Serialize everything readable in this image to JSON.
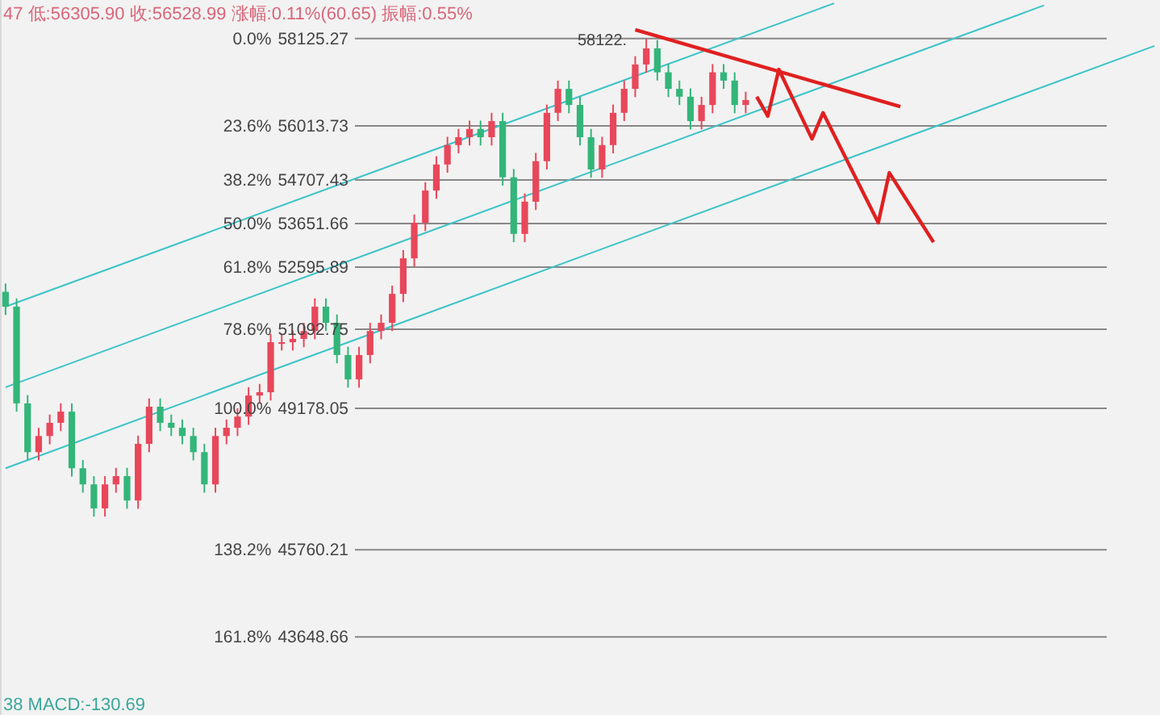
{
  "chart_data": {
    "type": "candlestick",
    "title": "47 低:56305.90 收:56528.99 涨幅:0.11%(60.65) 振幅:0.55%",
    "annotations": [
      "38 MACD:-130.69",
      "58122.",
      "0.0%",
      "23.6%",
      "38.2%",
      "50.0%",
      "61.8%",
      "78.6%",
      "100.0%",
      "138.2%",
      "161.8%"
    ],
    "ylim": [
      41760,
      59060
    ],
    "tick_labels": "y",
    "ref_lines": [
      {
        "axis": "y",
        "value": 58125.27,
        "color": "#888888"
      },
      {
        "axis": "y",
        "value": 56013.73,
        "color": "#888888"
      },
      {
        "axis": "y",
        "value": 54707.43,
        "color": "#888888"
      },
      {
        "axis": "y",
        "value": 53651.66,
        "color": "#888888"
      },
      {
        "axis": "y",
        "value": 52595.89,
        "color": "#888888"
      },
      {
        "axis": "y",
        "value": 51092.75,
        "color": "#888888"
      },
      {
        "axis": "y",
        "value": 49178.05,
        "color": "#888888"
      },
      {
        "axis": "y",
        "value": 45760.21,
        "color": "#888888"
      },
      {
        "axis": "y",
        "value": 43648.66,
        "color": "#888888"
      }
    ],
    "yticks": [
      58125.27,
      56013.73,
      54707.43,
      53651.66,
      52595.89,
      51092.75,
      49178.05,
      45760.21,
      43648.66
    ],
    "categories": [
      null,
      null,
      null,
      null,
      null,
      null,
      null,
      null,
      null,
      null,
      null,
      null,
      null,
      null,
      null,
      null,
      null,
      null,
      null,
      null,
      null,
      null,
      null,
      null,
      null,
      null,
      null,
      null,
      null,
      null,
      null,
      null,
      null,
      null,
      null,
      null,
      null,
      null,
      null,
      null,
      null,
      null,
      null,
      null,
      null,
      null,
      null,
      null,
      null,
      null,
      null,
      null,
      null,
      null,
      null,
      null,
      null,
      null,
      null,
      null,
      null,
      null,
      null,
      null,
      null,
      null,
      null,
      null,
      null,
      null,
      null,
      null,
      null,
      null,
      null,
      null,
      null,
      null,
      null,
      null,
      null,
      null,
      null,
      null,
      null,
      null,
      null,
      null,
      null,
      null,
      null,
      null,
      null,
      null,
      null,
      null,
      null,
      null,
      null,
      null,
      null,
      null,
      null,
      null,
      null
    ],
    "ohlc": [
      [
        52000,
        52200,
        51440,
        51640
      ],
      [
        51640,
        51840,
        49100,
        49300
      ],
      [
        49300,
        49500,
        47920,
        48120
      ],
      [
        48120,
        48710,
        47920,
        48510
      ],
      [
        48510,
        49030,
        48310,
        48830
      ],
      [
        48830,
        49300,
        48630,
        49100
      ],
      [
        49100,
        49300,
        47530,
        47730
      ],
      [
        47730,
        47930,
        47140,
        47340
      ],
      [
        47340,
        47540,
        46560,
        46760
      ],
      [
        46760,
        47540,
        46560,
        47340
      ],
      [
        47340,
        47740,
        47140,
        47540
      ],
      [
        47540,
        47740,
        46750,
        46950
      ],
      [
        46950,
        48520,
        46750,
        48320
      ],
      [
        48320,
        49420,
        48120,
        49220
      ],
      [
        49220,
        49420,
        48630,
        48830
      ],
      [
        48830,
        49030,
        48510,
        48710
      ],
      [
        48710,
        48910,
        48310,
        48510
      ],
      [
        48510,
        48710,
        47920,
        48120
      ],
      [
        48120,
        48320,
        47140,
        47340
      ],
      [
        47340,
        48710,
        47140,
        48510
      ],
      [
        48510,
        48910,
        48310,
        48710
      ],
      [
        48710,
        49180,
        48510,
        48980
      ],
      [
        48980,
        49690,
        48780,
        49490
      ],
      [
        49490,
        49770,
        49290,
        49570
      ],
      [
        49570,
        50980,
        49370,
        50780
      ],
      [
        50780,
        50980,
        50580,
        50780
      ],
      [
        50780,
        51060,
        50580,
        50860
      ],
      [
        50860,
        51250,
        50660,
        51050
      ],
      [
        51050,
        51840,
        50850,
        51640
      ],
      [
        51640,
        51840,
        51050,
        51250
      ],
      [
        51250,
        51450,
        50270,
        50470
      ],
      [
        50470,
        50670,
        49680,
        49880
      ],
      [
        49880,
        50670,
        49680,
        50470
      ],
      [
        50470,
        51250,
        50270,
        51050
      ],
      [
        51050,
        51450,
        50850,
        51250
      ],
      [
        51250,
        52150,
        51050,
        51950
      ],
      [
        51950,
        53010,
        51750,
        52810
      ],
      [
        52810,
        53870,
        52610,
        53670
      ],
      [
        53670,
        54650,
        53470,
        54450
      ],
      [
        54450,
        55280,
        54250,
        55080
      ],
      [
        55080,
        55750,
        54880,
        55550
      ],
      [
        55550,
        55940,
        55350,
        55740
      ],
      [
        55740,
        56140,
        55540,
        55940
      ],
      [
        55940,
        56140,
        55540,
        55740
      ],
      [
        55740,
        56330,
        55540,
        56130
      ],
      [
        56130,
        56330,
        54570,
        54770
      ],
      [
        54770,
        54970,
        53200,
        53400
      ],
      [
        53400,
        54380,
        53200,
        54180
      ],
      [
        54180,
        55360,
        53980,
        55160
      ],
      [
        55160,
        56530,
        54960,
        56330
      ],
      [
        56330,
        57110,
        56130,
        56910
      ],
      [
        56910,
        57110,
        56320,
        56520
      ],
      [
        56520,
        56720,
        55540,
        55740
      ],
      [
        55740,
        55940,
        54760,
        54960
      ],
      [
        54960,
        55750,
        54760,
        55550
      ],
      [
        55550,
        56530,
        55350,
        56330
      ],
      [
        56330,
        57110,
        56130,
        56910
      ],
      [
        56910,
        57700,
        56710,
        57500
      ],
      [
        57500,
        58120,
        57300,
        57890
      ],
      [
        57890,
        58090,
        57110,
        57310
      ],
      [
        57310,
        57510,
        56710,
        56910
      ],
      [
        56910,
        57110,
        56520,
        56720
      ],
      [
        56720,
        56920,
        55930,
        56130
      ],
      [
        56130,
        56720,
        55930,
        56520
      ],
      [
        56520,
        57510,
        56320,
        57310
      ],
      [
        57310,
        57510,
        56910,
        57110
      ],
      [
        57110,
        57310,
        56320,
        56520
      ],
      [
        56520,
        56840,
        56320,
        56640
      ],
      null,
      null,
      null,
      null,
      null,
      null,
      null,
      null,
      null,
      null,
      null,
      null,
      null,
      null,
      null,
      null,
      null,
      null,
      null,
      null,
      null,
      null,
      null,
      null,
      null,
      null,
      null,
      null,
      null,
      null,
      null,
      null,
      null,
      null,
      null,
      null,
      null
    ],
    "series": [
      {
        "type": "line",
        "color": "#3cc3c8",
        "values": [
          51640,
          null,
          null,
          null,
          null,
          null,
          null,
          null,
          null,
          null,
          null,
          null,
          null,
          null,
          null,
          null,
          null,
          null,
          null,
          null,
          null,
          null,
          null,
          null,
          null,
          null,
          null,
          null,
          null,
          null,
          null,
          null,
          null,
          null,
          null,
          null,
          null,
          null,
          null,
          null,
          null,
          null,
          null,
          null,
          null,
          null,
          null,
          null,
          null,
          null,
          null,
          null,
          null,
          null,
          null,
          null,
          null,
          null,
          null,
          null,
          null,
          null,
          null,
          null,
          null,
          null,
          null,
          null,
          null,
          null,
          null,
          null,
          null,
          null,
          null,
          58980,
          null,
          null,
          null,
          null,
          null,
          null,
          null,
          null,
          null,
          null,
          null,
          null,
          null,
          null,
          null,
          null,
          null,
          null,
          null,
          null,
          null,
          null,
          null,
          null,
          null,
          null,
          null,
          null,
          null
        ]
      },
      {
        "type": "line",
        "color": "#3cc3c8",
        "values": [
          49690,
          null,
          null,
          null,
          null,
          null,
          null,
          null,
          null,
          null,
          null,
          null,
          null,
          null,
          null,
          null,
          null,
          null,
          null,
          null,
          null,
          null,
          null,
          null,
          null,
          null,
          null,
          null,
          null,
          null,
          null,
          null,
          null,
          null,
          null,
          null,
          null,
          null,
          null,
          null,
          null,
          null,
          null,
          null,
          null,
          null,
          null,
          null,
          null,
          null,
          null,
          null,
          null,
          null,
          null,
          null,
          null,
          null,
          null,
          null,
          null,
          null,
          null,
          null,
          null,
          null,
          null,
          null,
          null,
          null,
          null,
          null,
          null,
          null,
          null,
          null,
          null,
          null,
          null,
          null,
          null,
          null,
          null,
          null,
          null,
          null,
          null,
          null,
          null,
          null,
          null,
          null,
          null,
          null,
          58930,
          null,
          null,
          null,
          null,
          null,
          null,
          null,
          null,
          null,
          null
        ]
      },
      {
        "type": "line",
        "color": "#3cc3c8",
        "values": [
          47730,
          null,
          null,
          null,
          null,
          null,
          null,
          null,
          null,
          null,
          null,
          null,
          null,
          null,
          null,
          null,
          null,
          null,
          null,
          null,
          null,
          null,
          null,
          null,
          null,
          null,
          null,
          null,
          null,
          null,
          null,
          null,
          null,
          null,
          null,
          null,
          null,
          null,
          null,
          null,
          null,
          null,
          null,
          null,
          null,
          null,
          null,
          null,
          null,
          null,
          null,
          null,
          null,
          null,
          null,
          null,
          null,
          null,
          null,
          null,
          null,
          null,
          null,
          null,
          null,
          null,
          null,
          null,
          null,
          null,
          null,
          null,
          null,
          null,
          null,
          null,
          null,
          null,
          null,
          null,
          null,
          null,
          null,
          null,
          null,
          null,
          null,
          null,
          null,
          null,
          null,
          null,
          null,
          null,
          null,
          null,
          null,
          null,
          null,
          null,
          null,
          null,
          null,
          null,
          57950
        ]
      },
      {
        "type": "line",
        "color": "#e02020",
        "values": [
          null,
          null,
          null,
          null,
          null,
          null,
          null,
          null,
          null,
          null,
          null,
          null,
          null,
          null,
          null,
          null,
          null,
          null,
          null,
          null,
          null,
          null,
          null,
          null,
          null,
          null,
          null,
          null,
          null,
          null,
          null,
          null,
          null,
          null,
          null,
          null,
          null,
          null,
          null,
          null,
          null,
          null,
          null,
          null,
          null,
          null,
          null,
          null,
          null,
          null,
          null,
          null,
          null,
          null,
          null,
          null,
          null,
          58340,
          null,
          null,
          null,
          null,
          null,
          null,
          null,
          null,
          null,
          null,
          null,
          null,
          null,
          null,
          null,
          null,
          null,
          null,
          null,
          null,
          null,
          null,
          null,
          56480,
          null,
          null,
          null,
          null,
          null,
          null,
          null,
          null,
          null,
          null,
          null,
          null,
          null,
          null,
          null,
          null,
          null,
          null,
          null,
          null,
          null,
          null,
          null
        ]
      },
      {
        "type": "line",
        "color": "#e02020",
        "values": [
          null,
          null,
          null,
          null,
          null,
          null,
          null,
          null,
          null,
          null,
          null,
          null,
          null,
          null,
          null,
          null,
          null,
          null,
          null,
          null,
          null,
          null,
          null,
          null,
          null,
          null,
          null,
          null,
          null,
          null,
          null,
          null,
          null,
          null,
          null,
          null,
          null,
          null,
          null,
          null,
          null,
          null,
          null,
          null,
          null,
          null,
          null,
          null,
          null,
          null,
          null,
          null,
          null,
          null,
          null,
          null,
          null,
          null,
          null,
          null,
          null,
          null,
          null,
          null,
          null,
          null,
          null,
          null,
          56720,
          56250,
          57380,
          null,
          null,
          55700,
          56330,
          null,
          null,
          null,
          null,
          53670,
          54880,
          null,
          null,
          null,
          53200,
          null,
          null,
          null,
          null,
          null,
          null,
          null,
          null,
          null,
          null,
          null,
          null,
          null,
          null,
          null,
          null,
          null,
          null,
          null,
          null
        ]
      }
    ]
  }
}
